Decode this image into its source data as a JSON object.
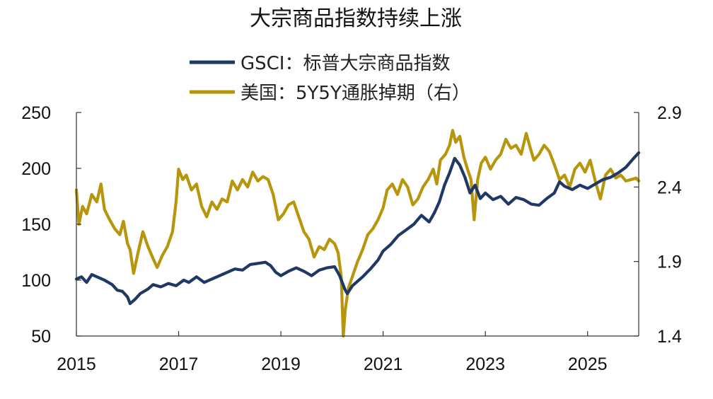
{
  "chart_data": {
    "type": "line",
    "title": "大宗商品指数持续上涨",
    "x_tick_labels": [
      "2015",
      "2017",
      "2019",
      "2021",
      "2023",
      "2025"
    ],
    "x_range": [
      2015,
      2026
    ],
    "y_left": {
      "range": [
        50,
        250
      ],
      "tick_labels": [
        "50",
        "100",
        "150",
        "200",
        "250"
      ]
    },
    "y_right": {
      "range": [
        1.4,
        2.9
      ],
      "tick_labels": [
        "1.4",
        "1.9",
        "2.4",
        "2.9"
      ]
    },
    "legend_placement": "top-center",
    "series": [
      {
        "name": "GSCI：标普大宗商品指数",
        "axis": "left",
        "color": "#1f3864",
        "points": [
          [
            2015.0,
            101
          ],
          [
            2015.1,
            103
          ],
          [
            2015.2,
            98
          ],
          [
            2015.3,
            105
          ],
          [
            2015.45,
            102
          ],
          [
            2015.55,
            100
          ],
          [
            2015.7,
            96
          ],
          [
            2015.8,
            91
          ],
          [
            2015.9,
            90
          ],
          [
            2016.0,
            85
          ],
          [
            2016.05,
            79
          ],
          [
            2016.15,
            83
          ],
          [
            2016.25,
            88
          ],
          [
            2016.4,
            92
          ],
          [
            2016.5,
            96
          ],
          [
            2016.65,
            94
          ],
          [
            2016.8,
            97
          ],
          [
            2016.95,
            95
          ],
          [
            2017.1,
            100
          ],
          [
            2017.2,
            98
          ],
          [
            2017.35,
            103
          ],
          [
            2017.5,
            98
          ],
          [
            2017.65,
            101
          ],
          [
            2017.8,
            104
          ],
          [
            2017.95,
            107
          ],
          [
            2018.1,
            110
          ],
          [
            2018.25,
            109
          ],
          [
            2018.4,
            114
          ],
          [
            2018.55,
            115
          ],
          [
            2018.7,
            116
          ],
          [
            2018.8,
            113
          ],
          [
            2018.9,
            107
          ],
          [
            2019.0,
            104
          ],
          [
            2019.15,
            108
          ],
          [
            2019.3,
            111
          ],
          [
            2019.45,
            108
          ],
          [
            2019.6,
            104
          ],
          [
            2019.75,
            109
          ],
          [
            2019.9,
            111
          ],
          [
            2020.05,
            112
          ],
          [
            2020.15,
            104
          ],
          [
            2020.25,
            92
          ],
          [
            2020.3,
            88
          ],
          [
            2020.4,
            95
          ],
          [
            2020.5,
            99
          ],
          [
            2020.6,
            103
          ],
          [
            2020.75,
            110
          ],
          [
            2020.9,
            118
          ],
          [
            2021.0,
            126
          ],
          [
            2021.15,
            132
          ],
          [
            2021.3,
            140
          ],
          [
            2021.45,
            145
          ],
          [
            2021.6,
            150
          ],
          [
            2021.75,
            158
          ],
          [
            2021.9,
            152
          ],
          [
            2022.0,
            160
          ],
          [
            2022.1,
            170
          ],
          [
            2022.2,
            185
          ],
          [
            2022.3,
            196
          ],
          [
            2022.4,
            209
          ],
          [
            2022.5,
            203
          ],
          [
            2022.6,
            192
          ],
          [
            2022.7,
            178
          ],
          [
            2022.8,
            185
          ],
          [
            2022.9,
            173
          ],
          [
            2023.0,
            178
          ],
          [
            2023.15,
            172
          ],
          [
            2023.3,
            175
          ],
          [
            2023.45,
            168
          ],
          [
            2023.6,
            174
          ],
          [
            2023.75,
            172
          ],
          [
            2023.9,
            168
          ],
          [
            2024.05,
            167
          ],
          [
            2024.2,
            173
          ],
          [
            2024.35,
            178
          ],
          [
            2024.45,
            188
          ],
          [
            2024.55,
            184
          ],
          [
            2024.7,
            181
          ],
          [
            2024.85,
            185
          ],
          [
            2025.0,
            182
          ],
          [
            2025.15,
            186
          ],
          [
            2025.3,
            190
          ],
          [
            2025.45,
            192
          ],
          [
            2025.6,
            196
          ],
          [
            2025.75,
            201
          ],
          [
            2025.9,
            209
          ],
          [
            2026.0,
            214
          ]
        ]
      },
      {
        "name": "美国：5Y5Y通胀掉期（右）",
        "axis": "right",
        "color": "#b8960c",
        "points": [
          [
            2015.0,
            2.38
          ],
          [
            2015.05,
            2.15
          ],
          [
            2015.12,
            2.27
          ],
          [
            2015.2,
            2.22
          ],
          [
            2015.3,
            2.35
          ],
          [
            2015.4,
            2.3
          ],
          [
            2015.48,
            2.42
          ],
          [
            2015.55,
            2.25
          ],
          [
            2015.65,
            2.18
          ],
          [
            2015.75,
            2.12
          ],
          [
            2015.85,
            2.08
          ],
          [
            2015.92,
            2.17
          ],
          [
            2016.0,
            2.02
          ],
          [
            2016.05,
            1.98
          ],
          [
            2016.12,
            1.82
          ],
          [
            2016.2,
            1.95
          ],
          [
            2016.3,
            2.1
          ],
          [
            2016.4,
            2.0
          ],
          [
            2016.5,
            1.92
          ],
          [
            2016.58,
            1.86
          ],
          [
            2016.68,
            1.94
          ],
          [
            2016.78,
            2.0
          ],
          [
            2016.88,
            2.1
          ],
          [
            2016.95,
            2.3
          ],
          [
            2017.0,
            2.52
          ],
          [
            2017.08,
            2.45
          ],
          [
            2017.15,
            2.48
          ],
          [
            2017.25,
            2.38
          ],
          [
            2017.35,
            2.42
          ],
          [
            2017.45,
            2.27
          ],
          [
            2017.55,
            2.2
          ],
          [
            2017.65,
            2.3
          ],
          [
            2017.75,
            2.25
          ],
          [
            2017.85,
            2.32
          ],
          [
            2017.95,
            2.3
          ],
          [
            2018.05,
            2.44
          ],
          [
            2018.15,
            2.38
          ],
          [
            2018.25,
            2.45
          ],
          [
            2018.35,
            2.4
          ],
          [
            2018.45,
            2.5
          ],
          [
            2018.55,
            2.44
          ],
          [
            2018.65,
            2.47
          ],
          [
            2018.75,
            2.45
          ],
          [
            2018.85,
            2.35
          ],
          [
            2018.95,
            2.18
          ],
          [
            2019.05,
            2.22
          ],
          [
            2019.15,
            2.28
          ],
          [
            2019.25,
            2.3
          ],
          [
            2019.35,
            2.2
          ],
          [
            2019.45,
            2.1
          ],
          [
            2019.55,
            2.05
          ],
          [
            2019.65,
            1.93
          ],
          [
            2019.75,
            2.0
          ],
          [
            2019.85,
            1.98
          ],
          [
            2019.95,
            2.05
          ],
          [
            2020.05,
            2.02
          ],
          [
            2020.12,
            1.96
          ],
          [
            2020.18,
            1.8
          ],
          [
            2020.22,
            1.4
          ],
          [
            2020.26,
            1.58
          ],
          [
            2020.32,
            1.72
          ],
          [
            2020.42,
            1.82
          ],
          [
            2020.5,
            1.9
          ],
          [
            2020.6,
            1.98
          ],
          [
            2020.7,
            2.08
          ],
          [
            2020.8,
            2.12
          ],
          [
            2020.9,
            2.18
          ],
          [
            2021.0,
            2.26
          ],
          [
            2021.08,
            2.38
          ],
          [
            2021.18,
            2.42
          ],
          [
            2021.28,
            2.35
          ],
          [
            2021.38,
            2.45
          ],
          [
            2021.48,
            2.4
          ],
          [
            2021.58,
            2.28
          ],
          [
            2021.68,
            2.32
          ],
          [
            2021.78,
            2.4
          ],
          [
            2021.88,
            2.45
          ],
          [
            2021.98,
            2.52
          ],
          [
            2022.05,
            2.42
          ],
          [
            2022.12,
            2.58
          ],
          [
            2022.22,
            2.62
          ],
          [
            2022.3,
            2.68
          ],
          [
            2022.36,
            2.78
          ],
          [
            2022.42,
            2.7
          ],
          [
            2022.5,
            2.74
          ],
          [
            2022.58,
            2.6
          ],
          [
            2022.65,
            2.52
          ],
          [
            2022.72,
            2.45
          ],
          [
            2022.78,
            2.18
          ],
          [
            2022.85,
            2.45
          ],
          [
            2022.92,
            2.56
          ],
          [
            2023.0,
            2.6
          ],
          [
            2023.1,
            2.52
          ],
          [
            2023.2,
            2.58
          ],
          [
            2023.3,
            2.62
          ],
          [
            2023.4,
            2.72
          ],
          [
            2023.5,
            2.66
          ],
          [
            2023.6,
            2.68
          ],
          [
            2023.7,
            2.62
          ],
          [
            2023.8,
            2.76
          ],
          [
            2023.88,
            2.66
          ],
          [
            2023.95,
            2.58
          ],
          [
            2024.05,
            2.62
          ],
          [
            2024.15,
            2.68
          ],
          [
            2024.25,
            2.64
          ],
          [
            2024.35,
            2.55
          ],
          [
            2024.45,
            2.45
          ],
          [
            2024.55,
            2.48
          ],
          [
            2024.65,
            2.4
          ],
          [
            2024.75,
            2.52
          ],
          [
            2024.85,
            2.56
          ],
          [
            2024.95,
            2.5
          ],
          [
            2025.05,
            2.58
          ],
          [
            2025.15,
            2.44
          ],
          [
            2025.25,
            2.32
          ],
          [
            2025.35,
            2.48
          ],
          [
            2025.45,
            2.52
          ],
          [
            2025.55,
            2.46
          ],
          [
            2025.65,
            2.48
          ],
          [
            2025.75,
            2.44
          ],
          [
            2025.85,
            2.45
          ],
          [
            2025.95,
            2.46
          ],
          [
            2026.0,
            2.44
          ]
        ]
      }
    ]
  }
}
